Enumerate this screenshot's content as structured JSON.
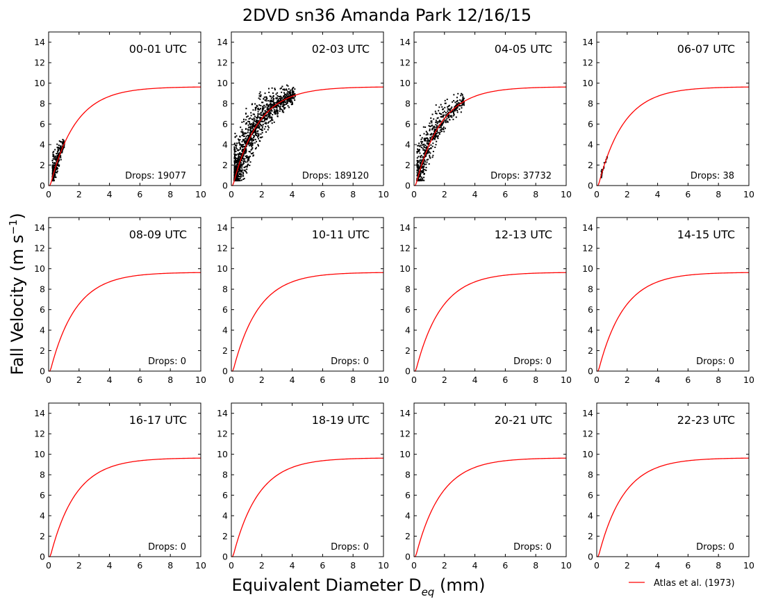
{
  "chart_data": {
    "type": "scatter",
    "title": "2DVD sn36 Amanda Park 12/16/15",
    "xlabel": "Equivalent Diameter D_eq (mm)",
    "xlabel_parts": {
      "main": "Equivalent Diameter D",
      "sub": "eq",
      "tail": " (mm)"
    },
    "ylabel": "Fall Velocity (m s^-1)",
    "ylabel_parts": {
      "main": "Fall Velocity (m s",
      "sup": "−1",
      "tail": ")"
    },
    "xlim": [
      0,
      10
    ],
    "ylim": [
      0,
      15
    ],
    "xticks": [
      0,
      2,
      4,
      6,
      8,
      10
    ],
    "yticks": [
      0,
      2,
      4,
      6,
      8,
      10,
      12,
      14
    ],
    "grid": false,
    "legend": {
      "placement": "bottom-right",
      "entries": [
        {
          "name": "Atlas et al. (1973)",
          "color": "#ff0000"
        }
      ]
    },
    "reference_curve": {
      "name": "Atlas et al. (1973)",
      "formula": "9.65 - 10.3*exp(-0.6*D)",
      "color": "#ff0000"
    },
    "point_color": "#000000",
    "panels": [
      {
        "label": "00-01 UTC",
        "drops_label": "Drops: 19077",
        "drops": 19077,
        "point_cloud": {
          "d_range": [
            0.25,
            1.05
          ],
          "v_spread_up": 2.2,
          "v_spread_down": 1.5
        }
      },
      {
        "label": "02-03 UTC",
        "drops_label": "Drops: 189120",
        "drops": 189120,
        "point_cloud": {
          "d_range": [
            0.2,
            4.2
          ],
          "v_spread_up": 3.5,
          "v_spread_down": 3.0
        }
      },
      {
        "label": "04-05 UTC",
        "drops_label": "Drops: 37732",
        "drops": 37732,
        "point_cloud": {
          "d_range": [
            0.2,
            3.3
          ],
          "v_spread_up": 3.0,
          "v_spread_down": 2.5
        }
      },
      {
        "label": "06-07 UTC",
        "drops_label": "Drops: 38",
        "drops": 38,
        "point_cloud": {
          "d_range": [
            0.3,
            0.7
          ],
          "v_spread_up": 0.5,
          "v_spread_down": 0.5
        }
      },
      {
        "label": "08-09 UTC",
        "drops_label": "Drops: 0",
        "drops": 0
      },
      {
        "label": "10-11 UTC",
        "drops_label": "Drops: 0",
        "drops": 0
      },
      {
        "label": "12-13 UTC",
        "drops_label": "Drops: 0",
        "drops": 0
      },
      {
        "label": "14-15 UTC",
        "drops_label": "Drops: 0",
        "drops": 0
      },
      {
        "label": "16-17 UTC",
        "drops_label": "Drops: 0",
        "drops": 0
      },
      {
        "label": "18-19 UTC",
        "drops_label": "Drops: 0",
        "drops": 0
      },
      {
        "label": "20-21 UTC",
        "drops_label": "Drops: 0",
        "drops": 0
      },
      {
        "label": "22-23 UTC",
        "drops_label": "Drops: 0",
        "drops": 0
      }
    ]
  }
}
